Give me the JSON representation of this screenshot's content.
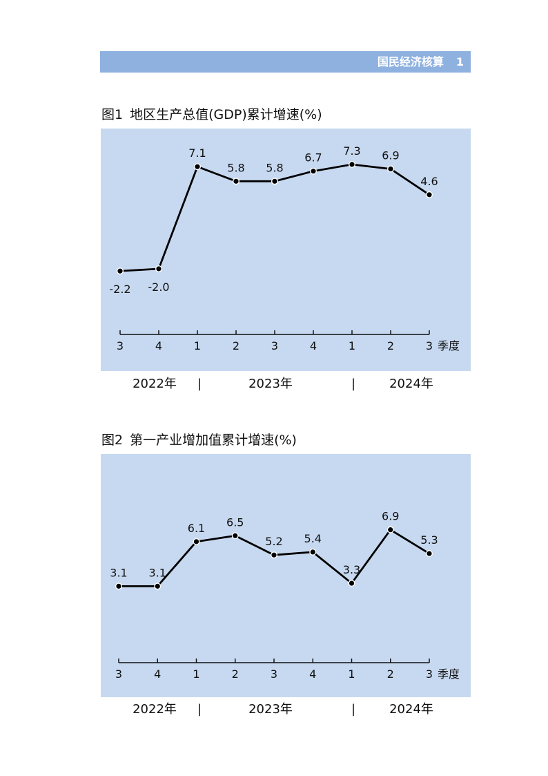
{
  "header": {
    "section": "国民经济核算",
    "page_number": "1"
  },
  "figures": [
    {
      "number": "图1",
      "title": "地区生产总值(GDP)累计增速(%)"
    },
    {
      "number": "图2",
      "title": "第一产业增加值累计增速(%)"
    }
  ],
  "chart_data": [
    {
      "type": "line",
      "title": "图1 地区生产总值(GDP)累计增速(%)",
      "categories": [
        "3",
        "4",
        "1",
        "2",
        "3",
        "4",
        "1",
        "2",
        "3"
      ],
      "x_unit": "季度",
      "years": [
        "2022年",
        "2023年",
        "2024年"
      ],
      "year_separator": "|",
      "values": [
        -2.2,
        -2.0,
        7.1,
        5.8,
        5.8,
        6.7,
        7.3,
        6.9,
        4.6
      ],
      "data_labels": [
        "-2.2",
        "-2.0",
        "7.1",
        "5.8",
        "5.8",
        "6.7",
        "7.3",
        "6.9",
        "4.6"
      ],
      "ylim": [
        -10.5,
        10.5
      ],
      "label_positions": [
        "below",
        "below",
        "above",
        "above",
        "above",
        "above",
        "above",
        "above",
        "above"
      ],
      "line_color": "#000000",
      "background_color": "#c7d9f0",
      "grid": false
    },
    {
      "type": "line",
      "title": "图2 第一产业增加值累计增速(%)",
      "categories": [
        "3",
        "4",
        "1",
        "2",
        "3",
        "4",
        "1",
        "2",
        "3"
      ],
      "x_unit": "季度",
      "years": [
        "2022年",
        "2023年",
        "2024年"
      ],
      "year_separator": "|",
      "values": [
        3.1,
        3.1,
        6.1,
        6.5,
        5.2,
        5.4,
        3.3,
        6.9,
        5.3
      ],
      "data_labels": [
        "3.1",
        "3.1",
        "6.1",
        "6.5",
        "5.2",
        "5.4",
        "3.3",
        "6.9",
        "5.3"
      ],
      "ylim": [
        -4.0,
        12.0
      ],
      "label_positions": [
        "above",
        "above",
        "above",
        "above",
        "above",
        "above",
        "above",
        "above",
        "above"
      ],
      "line_color": "#000000",
      "background_color": "#c7d9f0",
      "grid": false
    }
  ]
}
